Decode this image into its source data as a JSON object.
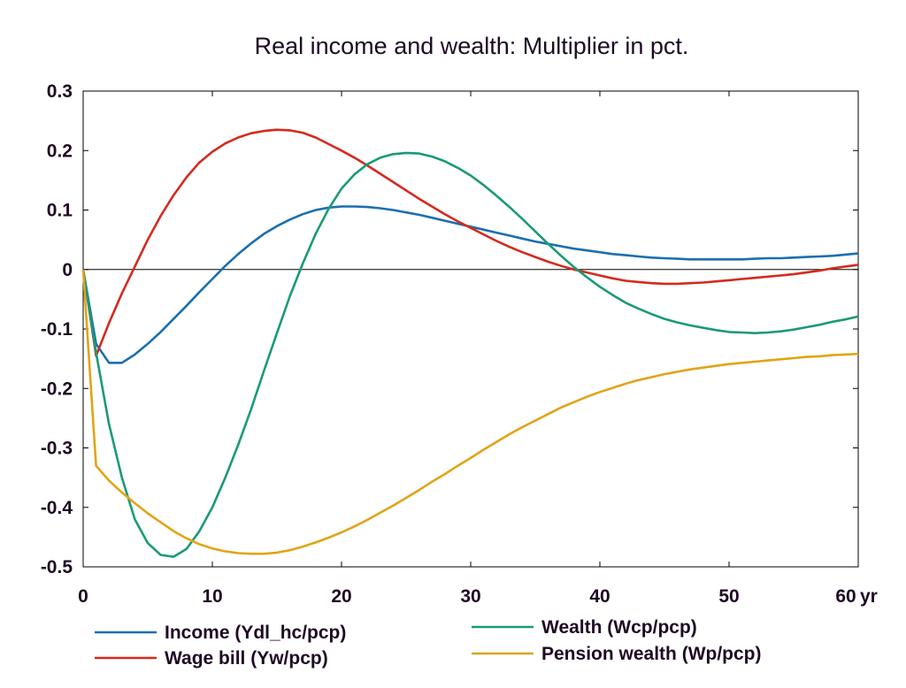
{
  "chart_data": {
    "type": "line",
    "title": "Real income and wealth: Multiplier in pct.",
    "xlabel": "",
    "ylabel": "",
    "x_unit_label": "yr",
    "xlim": [
      0,
      60
    ],
    "ylim": [
      -0.5,
      0.3
    ],
    "x_ticks": [
      0,
      10,
      20,
      30,
      40,
      50,
      60
    ],
    "x_tick_labels": [
      "0",
      "10",
      "20",
      "30",
      "40",
      "50",
      "60"
    ],
    "y_ticks": [
      0.3,
      0.2,
      0.1,
      0,
      -0.1,
      -0.2,
      -0.3,
      -0.4,
      -0.5
    ],
    "y_tick_labels": [
      "0.3",
      "0.2",
      "0.1",
      "0",
      "-0.1",
      "-0.2",
      "-0.3",
      "-0.4",
      "-0.5"
    ],
    "grid": false,
    "zero_line": true,
    "legend_position": "bottom",
    "x": [
      0,
      1,
      2,
      3,
      4,
      5,
      6,
      7,
      8,
      9,
      10,
      11,
      12,
      13,
      14,
      15,
      16,
      17,
      18,
      19,
      20,
      21,
      22,
      23,
      24,
      25,
      26,
      27,
      28,
      29,
      30,
      31,
      32,
      33,
      34,
      35,
      36,
      37,
      38,
      39,
      40,
      41,
      42,
      43,
      44,
      45,
      46,
      47,
      48,
      49,
      50,
      51,
      52,
      53,
      54,
      55,
      56,
      57,
      58,
      59,
      60
    ],
    "series": [
      {
        "name": "Income (Ydl_hc/pcp)",
        "color": "#1a6fb0",
        "values": [
          0,
          -0.125,
          -0.157,
          -0.157,
          -0.143,
          -0.125,
          -0.105,
          -0.083,
          -0.061,
          -0.038,
          -0.016,
          0.006,
          0.026,
          0.044,
          0.06,
          0.073,
          0.084,
          0.093,
          0.1,
          0.104,
          0.106,
          0.106,
          0.105,
          0.103,
          0.1,
          0.096,
          0.092,
          0.087,
          0.082,
          0.077,
          0.072,
          0.067,
          0.062,
          0.057,
          0.052,
          0.047,
          0.043,
          0.039,
          0.035,
          0.032,
          0.029,
          0.026,
          0.024,
          0.022,
          0.02,
          0.019,
          0.018,
          0.017,
          0.017,
          0.017,
          0.017,
          0.017,
          0.018,
          0.019,
          0.019,
          0.02,
          0.021,
          0.022,
          0.023,
          0.025,
          0.027
        ]
      },
      {
        "name": "Wage bill (Yw/pcp)",
        "color": "#d42a1e",
        "values": [
          0,
          -0.145,
          -0.09,
          -0.04,
          0.005,
          0.05,
          0.09,
          0.125,
          0.155,
          0.18,
          0.198,
          0.212,
          0.222,
          0.229,
          0.233,
          0.235,
          0.234,
          0.23,
          0.222,
          0.211,
          0.2,
          0.188,
          0.175,
          0.161,
          0.147,
          0.133,
          0.119,
          0.106,
          0.093,
          0.081,
          0.07,
          0.059,
          0.048,
          0.038,
          0.029,
          0.021,
          0.013,
          0.006,
          0,
          -0.005,
          -0.01,
          -0.015,
          -0.019,
          -0.021,
          -0.023,
          -0.024,
          -0.024,
          -0.023,
          -0.022,
          -0.02,
          -0.018,
          -0.016,
          -0.014,
          -0.012,
          -0.01,
          -0.008,
          -0.005,
          -0.002,
          0.002,
          0.005,
          0.008
        ]
      },
      {
        "name": "Wealth (Wcp/pcp)",
        "color": "#1a9a78",
        "values": [
          0,
          -0.14,
          -0.26,
          -0.35,
          -0.42,
          -0.46,
          -0.48,
          -0.483,
          -0.47,
          -0.44,
          -0.4,
          -0.35,
          -0.295,
          -0.235,
          -0.17,
          -0.107,
          -0.045,
          0.01,
          0.06,
          0.102,
          0.136,
          0.16,
          0.177,
          0.188,
          0.194,
          0.196,
          0.195,
          0.19,
          0.182,
          0.171,
          0.158,
          0.142,
          0.124,
          0.105,
          0.085,
          0.064,
          0.043,
          0.023,
          0.004,
          -0.013,
          -0.029,
          -0.043,
          -0.056,
          -0.066,
          -0.075,
          -0.083,
          -0.089,
          -0.094,
          -0.098,
          -0.102,
          -0.105,
          -0.106,
          -0.107,
          -0.106,
          -0.104,
          -0.101,
          -0.097,
          -0.093,
          -0.088,
          -0.084,
          -0.079
        ]
      },
      {
        "name": "Pension wealth (Wp/pcp)",
        "color": "#e0a417",
        "values": [
          0,
          -0.33,
          -0.355,
          -0.375,
          -0.393,
          -0.41,
          -0.425,
          -0.44,
          -0.452,
          -0.462,
          -0.469,
          -0.474,
          -0.477,
          -0.478,
          -0.478,
          -0.476,
          -0.472,
          -0.466,
          -0.459,
          -0.451,
          -0.442,
          -0.432,
          -0.421,
          -0.409,
          -0.397,
          -0.384,
          -0.371,
          -0.357,
          -0.344,
          -0.33,
          -0.317,
          -0.303,
          -0.29,
          -0.277,
          -0.265,
          -0.254,
          -0.243,
          -0.232,
          -0.223,
          -0.214,
          -0.206,
          -0.199,
          -0.192,
          -0.186,
          -0.181,
          -0.176,
          -0.172,
          -0.168,
          -0.165,
          -0.162,
          -0.159,
          -0.157,
          -0.155,
          -0.153,
          -0.151,
          -0.149,
          -0.147,
          -0.146,
          -0.144,
          -0.143,
          -0.142
        ]
      }
    ]
  }
}
